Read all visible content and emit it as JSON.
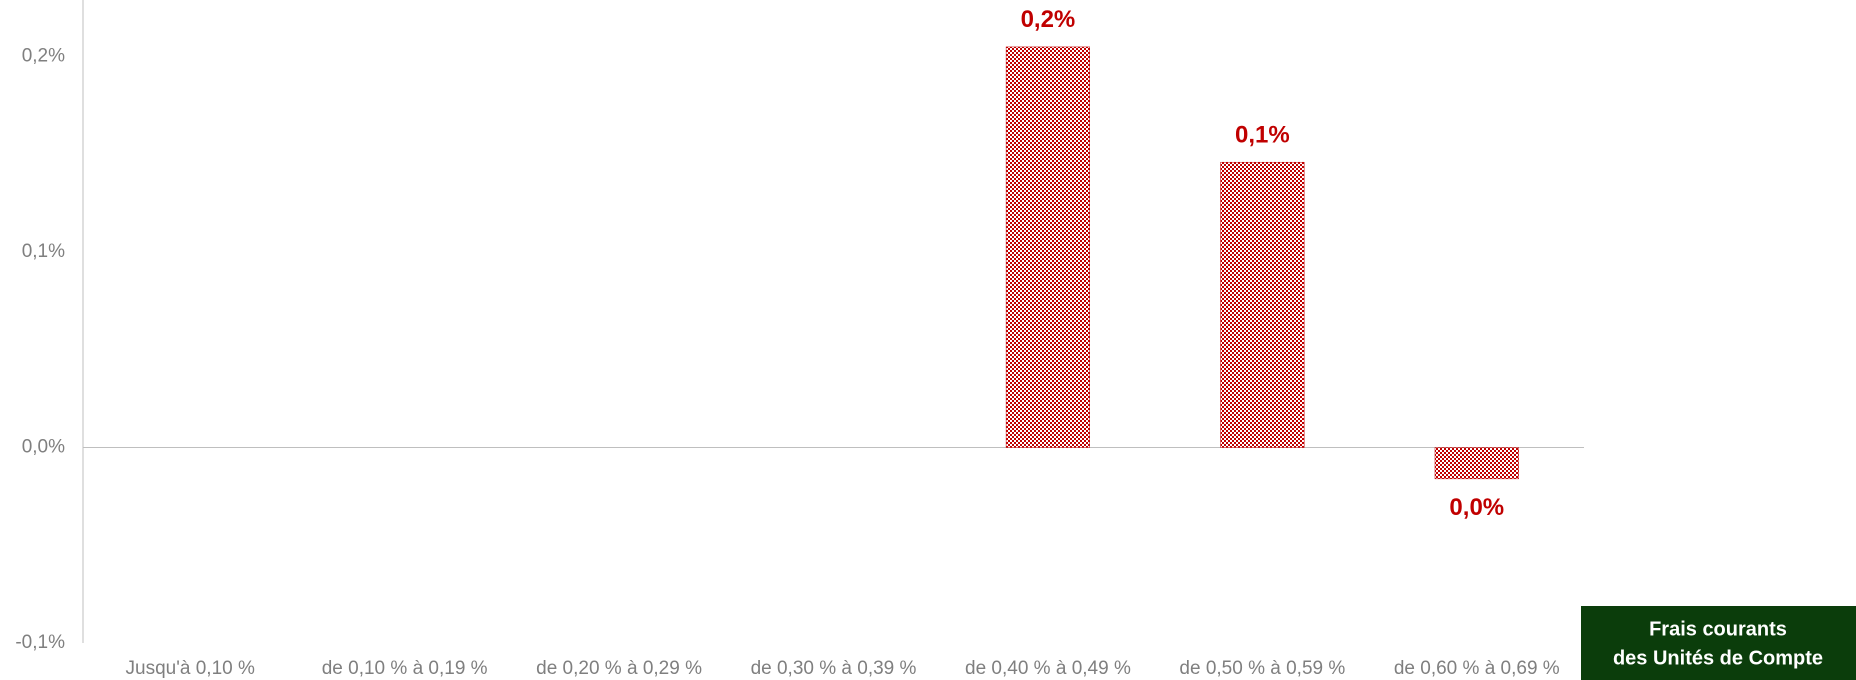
{
  "chart_data": {
    "type": "bar",
    "categories": [
      "Jusqu'à 0,10 %",
      "de 0,10 % à 0,19 %",
      "de 0,20 % à 0,29 %",
      "de 0,30 % à 0,39 %",
      "de 0,40 % à 0,49 %",
      "de 0,50 % à 0,59 %",
      "de 0,60 % à 0,69 %"
    ],
    "values": [
      null,
      null,
      null,
      null,
      0.205,
      0.146,
      -0.016
    ],
    "value_labels": [
      null,
      null,
      null,
      null,
      "0,2%",
      "0,1%",
      "0,0%"
    ],
    "color": "#c00000",
    "ylim": [
      -0.1,
      0.229
    ],
    "yticks": [
      {
        "value": -0.1,
        "label": "-0,1%"
      },
      {
        "value": 0,
        "label": "0,0%"
      },
      {
        "value": 0.1,
        "label": "0,1%"
      },
      {
        "value": 0.2,
        "label": "0,2%"
      }
    ],
    "grid": false,
    "xlabel": [
      "Frais courants",
      "des Unités de Compte"
    ]
  }
}
